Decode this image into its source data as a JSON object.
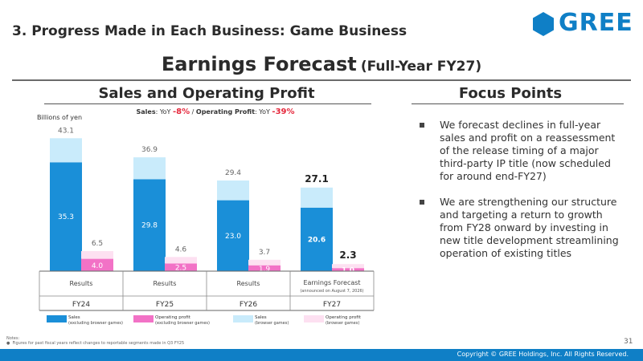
{
  "section_title": "3. Progress Made in Each Business: Game Business",
  "brand": {
    "name": "GREE",
    "color": "#0f7fc6"
  },
  "title": {
    "main": "Earnings Forecast",
    "sub": "(Full-Year FY27)"
  },
  "left_pane": {
    "heading": "Sales and Operating Profit",
    "yoy": {
      "sales_label": "Sales",
      "sales_prefix": ": YoY ",
      "sales_value": "-8%",
      "sep": " / ",
      "op_label": "Operating Profit",
      "op_prefix": ": YoY ",
      "op_value": "-39%"
    },
    "unit": "Billions of yen"
  },
  "right_pane": {
    "heading": "Focus Points",
    "bullets": [
      "We forecast declines in full-year sales and profit on a reassessment of the release timing of a major third-party IP title (now scheduled for around end-FY27)",
      "We are strengthening our structure and targeting a return to growth from FY28 onward by investing in new title development streamlining operation of existing titles"
    ]
  },
  "chart_data": {
    "type": "bar",
    "stacked": true,
    "categories": [
      "FY24",
      "FY25",
      "FY26",
      "FY27"
    ],
    "category_subtitles": [
      "Results",
      "Results",
      "Results",
      "Earnings Forecast"
    ],
    "category_notes": [
      "",
      "",
      "",
      "(announced on August 7, 2026)"
    ],
    "groups": [
      {
        "name": "Sales",
        "totals": [
          "43.1",
          "36.9",
          "29.4",
          "27.1"
        ],
        "total_values": [
          43.1,
          36.9,
          29.4,
          27.1
        ]
      },
      {
        "name": "Operating profit",
        "totals": [
          "6.5",
          "4.6",
          "3.7",
          "2.3"
        ],
        "total_values": [
          6.5,
          4.6,
          3.7,
          2.3
        ]
      }
    ],
    "series": [
      {
        "name": "Sales (excluding browser games)",
        "group": "Sales",
        "values": [
          35.3,
          29.8,
          23.0,
          20.6
        ],
        "labels": [
          "35.3",
          "29.8",
          "23.0",
          "20.6"
        ],
        "color": "#1a8fd8"
      },
      {
        "name": "Sales (browser games)",
        "group": "Sales",
        "values": [
          7.8,
          7.1,
          6.4,
          6.5
        ],
        "color": "#c9ebfb"
      },
      {
        "name": "Operating profit (excluding browser games)",
        "group": "Operating profit",
        "values": [
          4.0,
          2.5,
          1.9,
          1.0
        ],
        "labels": [
          "4.0",
          "2.5",
          "1.9",
          "1.0"
        ],
        "color": "#f272c6"
      },
      {
        "name": "Operating profit (browser games)",
        "group": "Operating profit",
        "values": [
          2.5,
          2.1,
          1.8,
          1.3
        ],
        "color": "#fde0f1"
      }
    ],
    "legend": [
      {
        "label": "Sales",
        "sub": "(excluding browser games)",
        "color": "#1a8fd8"
      },
      {
        "label": "Operating profit",
        "sub": "(excluding browser games)",
        "color": "#f272c6"
      },
      {
        "label": "Sales",
        "sub": "(browser games)",
        "color": "#c9ebfb"
      },
      {
        "label": "Operating profit",
        "sub": "(browser games)",
        "color": "#fde0f1"
      }
    ],
    "ylim": [
      0,
      45
    ],
    "highlight_category": "FY27"
  },
  "notes": {
    "heading": "Notes:",
    "items": [
      "Figures for past fiscal years reflect changes to reportable segments made in Q3 FY25"
    ]
  },
  "page_number": "31",
  "copyright": "Copyright © GREE Holdings, Inc. All Rights Reserved."
}
